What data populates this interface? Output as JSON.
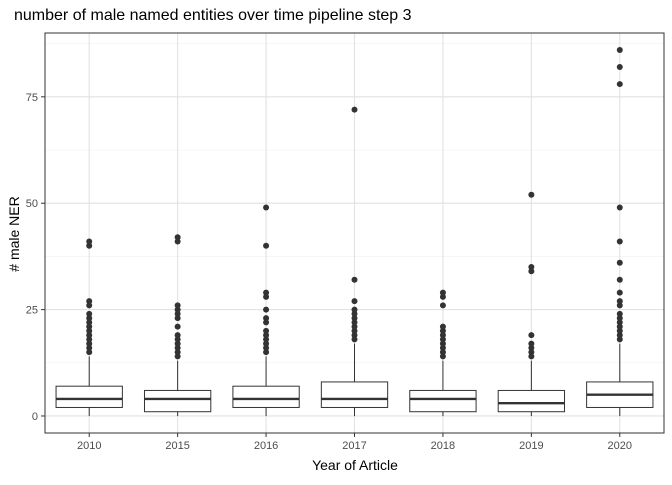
{
  "chart_data": {
    "type": "boxplot",
    "title": "number of male named entities over time pipeline step 3",
    "xlabel": "Year of Article",
    "ylabel": "# male NER",
    "ylim": [
      -4,
      90
    ],
    "yticks": [
      0,
      25,
      50,
      75
    ],
    "grid": true,
    "theme": "bw",
    "categories": [
      "2010",
      "2015",
      "2016",
      "2017",
      "2018",
      "2019",
      "2020"
    ],
    "boxes": [
      {
        "year": "2010",
        "min": 0,
        "q1": 2,
        "median": 4,
        "q3": 7,
        "max": 14,
        "outliers": [
          15,
          16,
          17,
          18,
          19,
          20,
          21,
          22,
          23,
          24,
          26,
          27,
          40,
          41
        ]
      },
      {
        "year": "2015",
        "min": 0,
        "q1": 1,
        "median": 4,
        "q3": 6,
        "max": 13,
        "outliers": [
          14,
          15,
          16,
          17,
          18,
          19,
          21,
          23,
          24,
          25,
          26,
          41,
          42
        ]
      },
      {
        "year": "2016",
        "min": 0,
        "q1": 2,
        "median": 4,
        "q3": 7,
        "max": 14,
        "outliers": [
          15,
          16,
          17,
          18,
          19,
          20,
          22,
          23,
          25,
          28,
          29,
          40,
          49
        ]
      },
      {
        "year": "2017",
        "min": 0,
        "q1": 2,
        "median": 4,
        "q3": 8,
        "max": 17,
        "outliers": [
          18,
          19,
          20,
          21,
          22,
          23,
          24,
          25,
          27,
          32,
          72
        ]
      },
      {
        "year": "2018",
        "min": 0,
        "q1": 1,
        "median": 4,
        "q3": 6,
        "max": 13,
        "outliers": [
          14,
          15,
          16,
          17,
          18,
          19,
          20,
          21,
          26,
          28,
          29
        ]
      },
      {
        "year": "2019",
        "min": 0,
        "q1": 1,
        "median": 3,
        "q3": 6,
        "max": 13,
        "outliers": [
          14,
          15,
          16,
          17,
          19,
          34,
          35,
          52
        ]
      },
      {
        "year": "2020",
        "min": 0,
        "q1": 2,
        "median": 5,
        "q3": 8,
        "max": 17,
        "outliers": [
          18,
          19,
          20,
          21,
          22,
          23,
          24,
          26,
          27,
          29,
          32,
          36,
          41,
          49,
          78,
          82,
          86
        ]
      }
    ]
  }
}
